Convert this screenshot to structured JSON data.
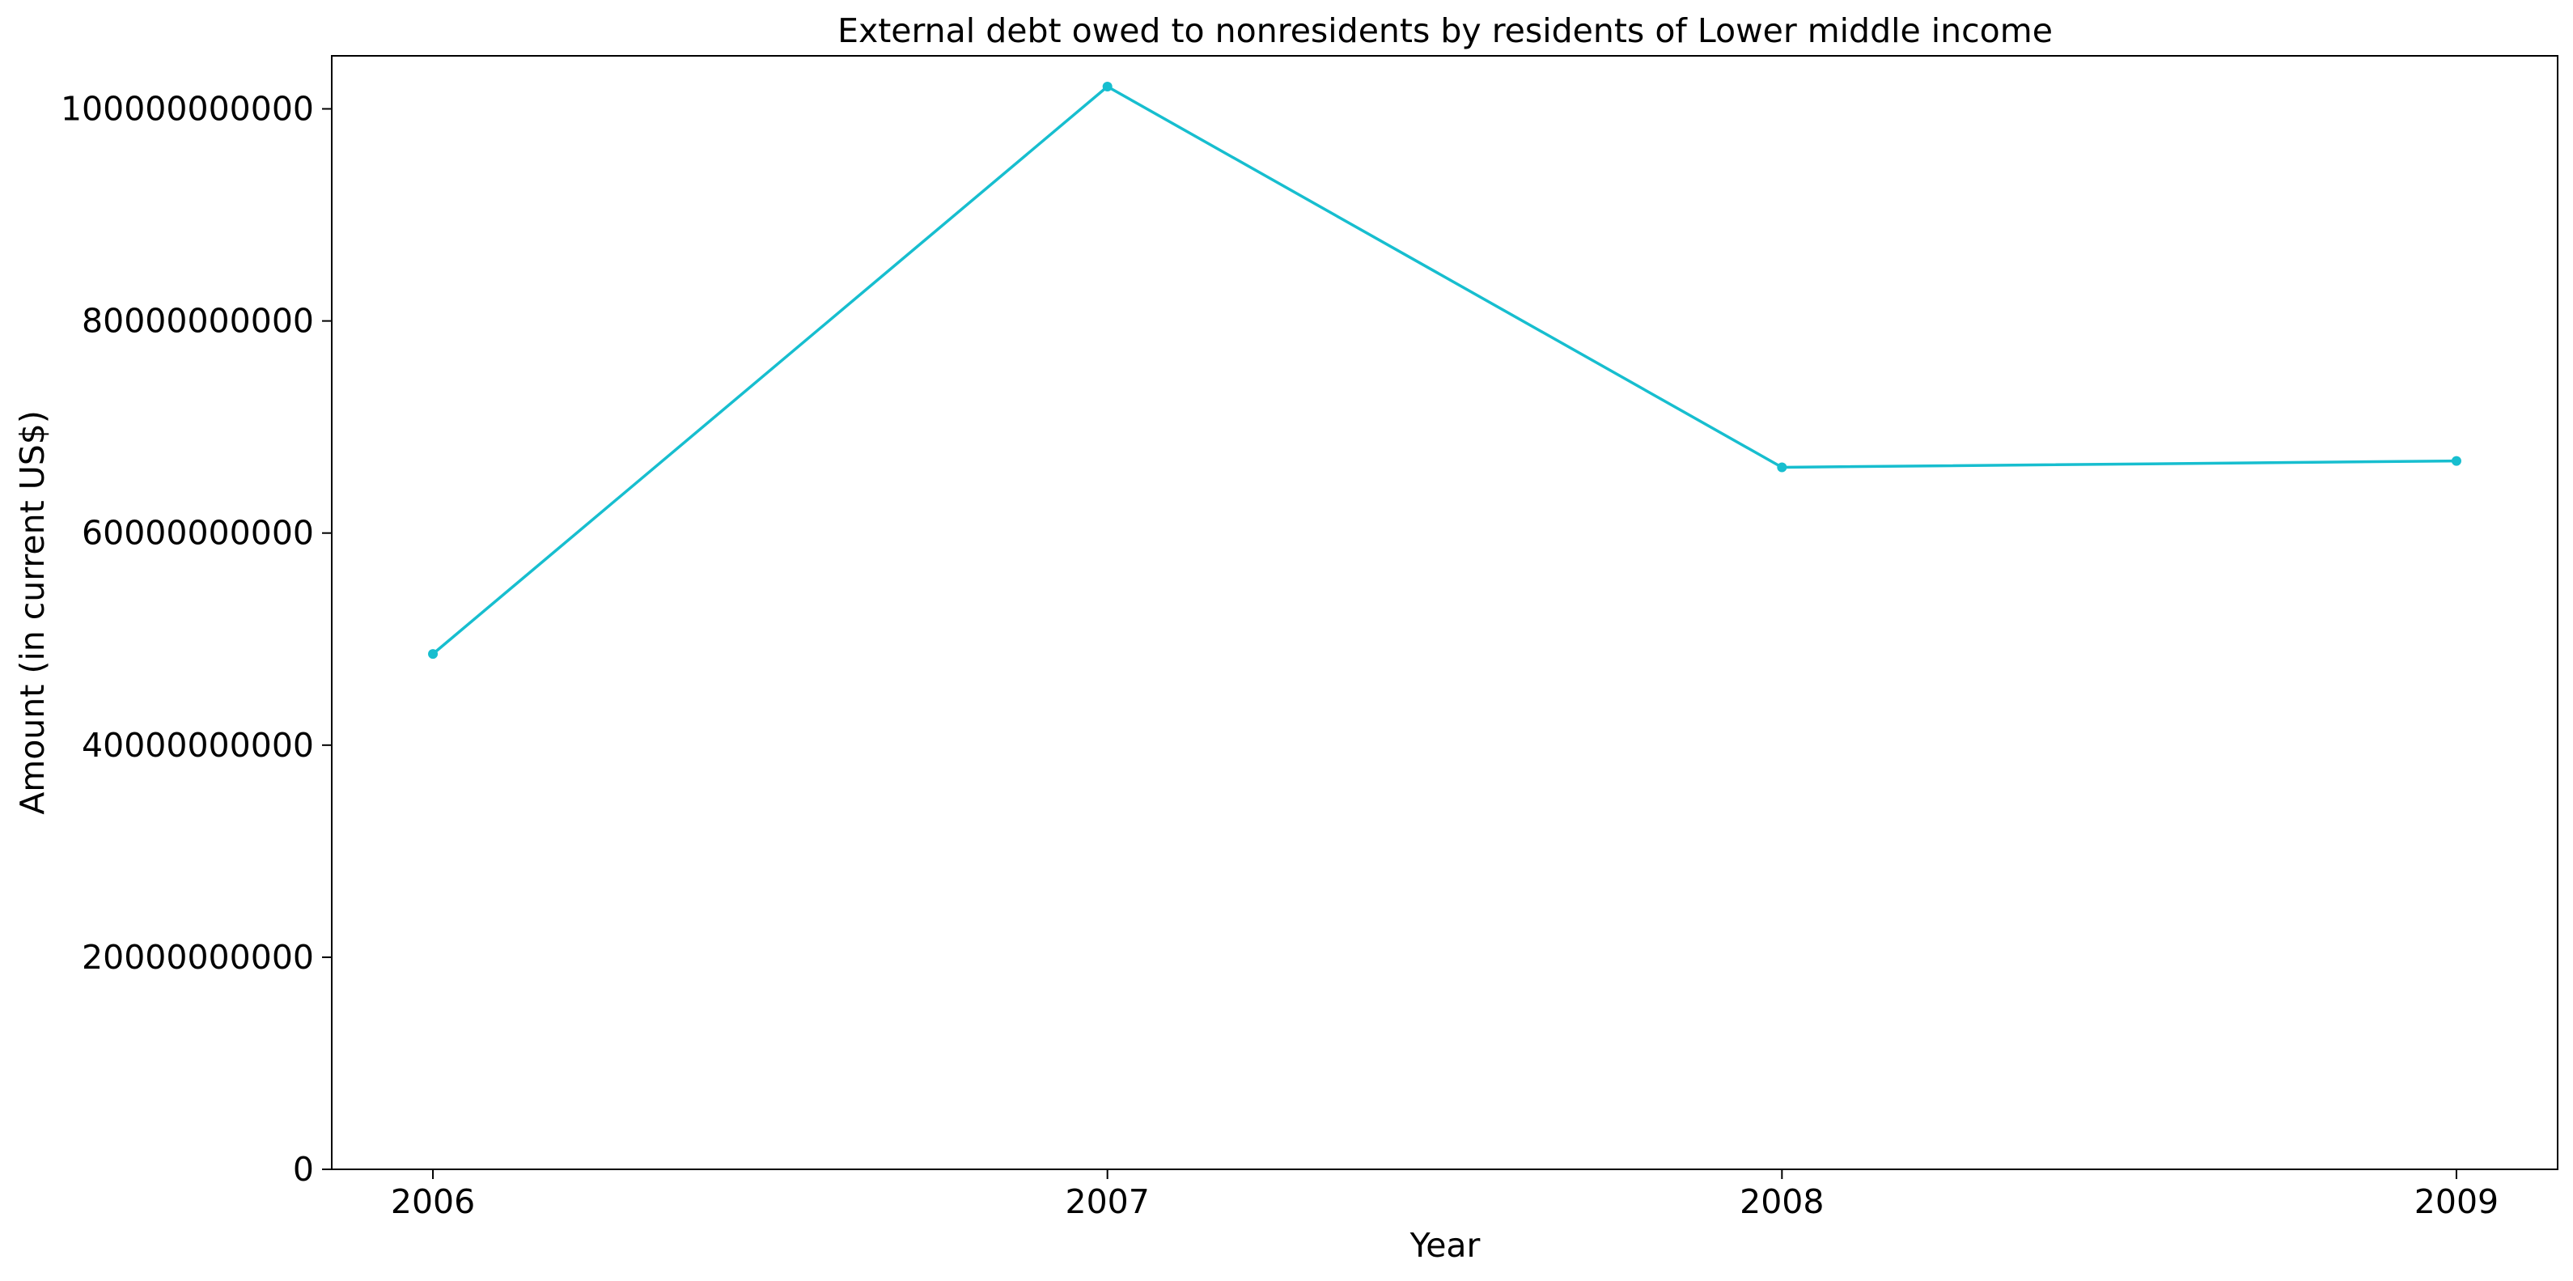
{
  "chart_data": {
    "type": "line",
    "title": "External debt owed to nonresidents by residents of Lower middle income",
    "xlabel": "Year",
    "ylabel": "Amount (in current US$)",
    "categories": [
      "2006",
      "2007",
      "2008",
      "2009"
    ],
    "series": [
      {
        "values": [
          48600000000,
          102100000000,
          66200000000,
          66800000000
        ],
        "color": "#17becf",
        "marker": "circle"
      }
    ],
    "ylim": [
      0,
      105000000000
    ],
    "xlim": [
      2005.85,
      2009.15
    ],
    "yticks": [
      {
        "value": 0,
        "label": "0"
      },
      {
        "value": 20000000000,
        "label": "20000000000"
      },
      {
        "value": 40000000000,
        "label": "40000000000"
      },
      {
        "value": 60000000000,
        "label": "60000000000"
      },
      {
        "value": 80000000000,
        "label": "80000000000"
      },
      {
        "value": 100000000000,
        "label": "100000000000"
      }
    ],
    "xticks": [
      {
        "value": 2006,
        "label": "2006"
      },
      {
        "value": 2007,
        "label": "2007"
      },
      {
        "value": 2008,
        "label": "2008"
      },
      {
        "value": 2009,
        "label": "2009"
      }
    ],
    "grid": false,
    "legend": "none"
  }
}
